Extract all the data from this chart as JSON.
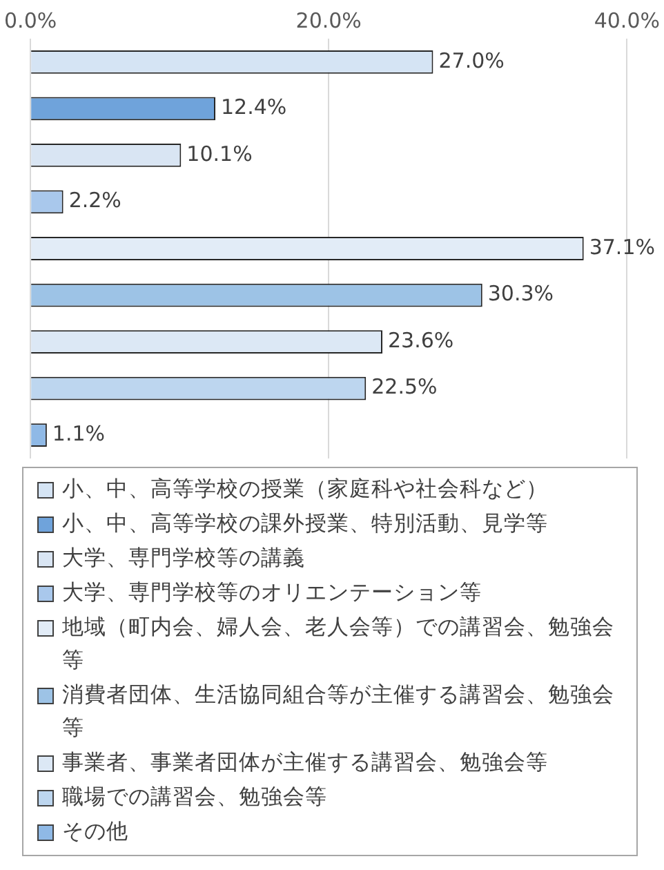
{
  "chart_data": {
    "type": "bar",
    "orientation": "horizontal",
    "categories": [
      null,
      null,
      null,
      null,
      null,
      null,
      null,
      null,
      null
    ],
    "xlim": [
      0,
      40
    ],
    "xticks": [
      {
        "value": 0,
        "label": "0.0%"
      },
      {
        "value": 20,
        "label": "20.0%"
      },
      {
        "value": 40,
        "label": "40.0%"
      }
    ],
    "grid": "x",
    "legend": "bottom",
    "tick_labels": "x",
    "series": [
      {
        "name": "小、中、高等学校の授業（家庭科や社会科など）",
        "color": "#d5e4f4",
        "values": [
          27.0,
          null,
          null,
          null,
          null,
          null,
          null,
          null,
          null
        ],
        "value_labels": [
          "27.0%",
          null,
          null,
          null,
          null,
          null,
          null,
          null,
          null
        ]
      },
      {
        "name": "小、中、高等学校の課外授業、特別活動、見学等",
        "color": "#6fa3db",
        "values": [
          null,
          12.4,
          null,
          null,
          null,
          null,
          null,
          null,
          null
        ],
        "value_labels": [
          null,
          "12.4%",
          null,
          null,
          null,
          null,
          null,
          null,
          null
        ]
      },
      {
        "name": "大学、専門学校等の講義",
        "color": "#d9e5f3",
        "values": [
          null,
          null,
          10.1,
          null,
          null,
          null,
          null,
          null,
          null
        ],
        "value_labels": [
          null,
          null,
          "10.1%",
          null,
          null,
          null,
          null,
          null,
          null
        ]
      },
      {
        "name": "大学、専門学校等のオリエンテーション等",
        "color": "#a9c8ec",
        "values": [
          null,
          null,
          null,
          2.2,
          null,
          null,
          null,
          null,
          null
        ],
        "value_labels": [
          null,
          null,
          null,
          "2.2%",
          null,
          null,
          null,
          null,
          null
        ]
      },
      {
        "name": "地域（町内会、婦人会、老人会等）での講習会、勉強会等",
        "color": "#e2ecf7",
        "values": [
          null,
          null,
          null,
          null,
          37.1,
          null,
          null,
          null,
          null
        ],
        "value_labels": [
          null,
          null,
          null,
          null,
          "37.1%",
          null,
          null,
          null,
          null
        ]
      },
      {
        "name": "消費者団体、生活協同組合等が主催する講習会、勉強会等",
        "color": "#9dc3e6",
        "values": [
          null,
          null,
          null,
          null,
          null,
          30.3,
          null,
          null,
          null
        ],
        "value_labels": [
          null,
          null,
          null,
          null,
          null,
          "30.3%",
          null,
          null,
          null
        ]
      },
      {
        "name": "事業者、事業者団体が主催する講習会、勉強会等",
        "color": "#dce8f5",
        "values": [
          null,
          null,
          null,
          null,
          null,
          null,
          23.6,
          null,
          null
        ],
        "value_labels": [
          null,
          null,
          null,
          null,
          null,
          null,
          "23.6%",
          null,
          null
        ]
      },
      {
        "name": "職場での講習会、勉強会等",
        "color": "#bdd6ef",
        "values": [
          null,
          null,
          null,
          null,
          null,
          null,
          null,
          22.5,
          null
        ],
        "value_labels": [
          null,
          null,
          null,
          null,
          null,
          null,
          null,
          "22.5%",
          null
        ]
      },
      {
        "name": "その他",
        "color": "#8fb9e6",
        "values": [
          null,
          null,
          null,
          null,
          null,
          null,
          null,
          null,
          1.1
        ],
        "value_labels": [
          null,
          null,
          null,
          null,
          null,
          null,
          null,
          null,
          "1.1%"
        ]
      }
    ]
  }
}
